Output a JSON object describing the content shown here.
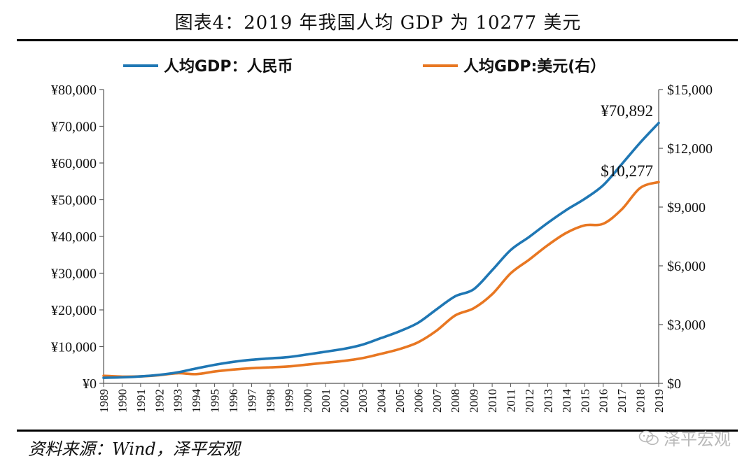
{
  "page": {
    "title": "图表4：2019 年我国人均 GDP 为 10277 美元",
    "source": "资料来源：Wind，泽平宏观",
    "watermark": "泽平宏观"
  },
  "chart_data": {
    "type": "line",
    "title": "图表4：2019 年我国人均 GDP 为 10277 美元",
    "x": [
      1989,
      1990,
      1991,
      1992,
      1993,
      1994,
      1995,
      1996,
      1997,
      1998,
      1999,
      2000,
      2001,
      2002,
      2003,
      2004,
      2005,
      2006,
      2007,
      2008,
      2009,
      2010,
      2011,
      2012,
      2013,
      2014,
      2015,
      2016,
      2017,
      2018,
      2019
    ],
    "x_tick_labels": [
      "1989",
      "1990",
      "1991",
      "1992",
      "1993",
      "1994",
      "1995",
      "1996",
      "1997",
      "1998",
      "1999",
      "2000",
      "2001",
      "2002",
      "2003",
      "2004",
      "2005",
      "2006",
      "2007",
      "2008",
      "2009",
      "2010",
      "2011",
      "2012",
      "2013",
      "2014",
      "2015",
      "2016",
      "2017",
      "2018",
      "2019"
    ],
    "series": [
      {
        "name": "人均GDP：人民币",
        "axis": "left",
        "color": "#1F77B4",
        "values": [
          1519,
          1644,
          1893,
          2311,
          2998,
          4044,
          5046,
          5846,
          6420,
          6796,
          7159,
          7858,
          8622,
          9398,
          10542,
          12336,
          14185,
          16500,
          20169,
          23708,
          25608,
          30808,
          36302,
          39874,
          43684,
          47173,
          50237,
          53935,
          59660,
          65534,
          70892
        ]
      },
      {
        "name": "人均GDP:美元(右）",
        "axis": "right",
        "color": "#E87722",
        "values": [
          385,
          344,
          356,
          419,
          517,
          470,
          604,
          703,
          775,
          817,
          865,
          959,
          1053,
          1149,
          1289,
          1509,
          1753,
          2099,
          2694,
          3468,
          3832,
          4550,
          5618,
          6316,
          7050,
          7678,
          8066,
          8147,
          8879,
          9977,
          10277
        ]
      }
    ],
    "left_axis": {
      "min": 0,
      "max": 80000,
      "step": 10000,
      "tick_labels": [
        "¥0",
        "¥10,000",
        "¥20,000",
        "¥30,000",
        "¥40,000",
        "¥50,000",
        "¥60,000",
        "¥70,000",
        "¥80,000"
      ]
    },
    "right_axis": {
      "min": 0,
      "max": 15000,
      "step": 3000,
      "tick_labels": [
        "$0",
        "$3,000",
        "$6,000",
        "$9,000",
        "$12,000",
        "$15,000"
      ]
    },
    "annotations": [
      {
        "text": "¥70,892",
        "series": 0,
        "x": 2019
      },
      {
        "text": "$10,277",
        "series": 1,
        "x": 2019
      }
    ],
    "legend": {
      "position": "top"
    },
    "grid": false,
    "colors": {
      "rmb": "#1F77B4",
      "usd": "#E87722",
      "axis": "#555555"
    }
  }
}
